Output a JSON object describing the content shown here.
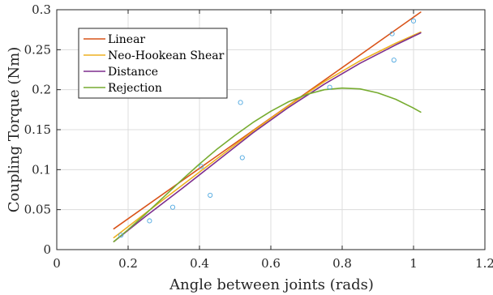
{
  "chart_data": {
    "type": "line",
    "xlabel": "Angle between joints (rads)",
    "ylabel": "Coupling Torque (Nm)",
    "xlim": [
      0,
      1.2
    ],
    "ylim": [
      0,
      0.3
    ],
    "xticks": [
      0,
      0.2,
      0.4,
      0.6,
      0.8,
      1,
      1.2
    ],
    "xtick_labels": [
      "0",
      "0.2",
      "0.4",
      "0.6",
      "0.8",
      "1",
      "1.2"
    ],
    "yticks": [
      0,
      0.05,
      0.1,
      0.15,
      0.2,
      0.25,
      0.3
    ],
    "ytick_labels": [
      "0",
      "0.05",
      "0.1",
      "0.15",
      "0.2",
      "0.25",
      "0.3"
    ],
    "grid": true,
    "legend_position": "top-left",
    "scatter": {
      "color": "#4fa8e0",
      "x": [
        0.18,
        0.26,
        0.325,
        0.405,
        0.43,
        0.515,
        0.52,
        0.765,
        0.94,
        0.945,
        1.0
      ],
      "y": [
        0.018,
        0.036,
        0.053,
        0.104,
        0.068,
        0.184,
        0.115,
        0.203,
        0.27,
        0.237,
        0.286
      ]
    },
    "series": [
      {
        "name": "Linear",
        "color": "#d95319",
        "x": [
          0.16,
          1.02
        ],
        "y": [
          0.026,
          0.297
        ]
      },
      {
        "name": "Neo-Hookean Shear",
        "color": "#edb120",
        "x": [
          0.16,
          0.25,
          0.35,
          0.45,
          0.55,
          0.65,
          0.75,
          0.85,
          0.95,
          1.02
        ],
        "y": [
          0.015,
          0.046,
          0.08,
          0.114,
          0.148,
          0.18,
          0.21,
          0.236,
          0.258,
          0.272
        ]
      },
      {
        "name": "Distance",
        "color": "#7e2f8e",
        "x": [
          0.16,
          0.25,
          0.35,
          0.45,
          0.55,
          0.65,
          0.75,
          0.85,
          0.95,
          1.02
        ],
        "y": [
          0.01,
          0.042,
          0.076,
          0.111,
          0.146,
          0.178,
          0.207,
          0.233,
          0.256,
          0.271
        ]
      },
      {
        "name": "Rejection",
        "color": "#77ac30",
        "x": [
          0.16,
          0.2,
          0.25,
          0.3,
          0.35,
          0.4,
          0.45,
          0.5,
          0.55,
          0.6,
          0.65,
          0.7,
          0.75,
          0.8,
          0.85,
          0.9,
          0.95,
          1.0,
          1.02
        ],
        "y": [
          0.01,
          0.025,
          0.045,
          0.066,
          0.087,
          0.107,
          0.126,
          0.143,
          0.159,
          0.173,
          0.185,
          0.194,
          0.2,
          0.202,
          0.201,
          0.196,
          0.188,
          0.177,
          0.172
        ]
      }
    ]
  }
}
